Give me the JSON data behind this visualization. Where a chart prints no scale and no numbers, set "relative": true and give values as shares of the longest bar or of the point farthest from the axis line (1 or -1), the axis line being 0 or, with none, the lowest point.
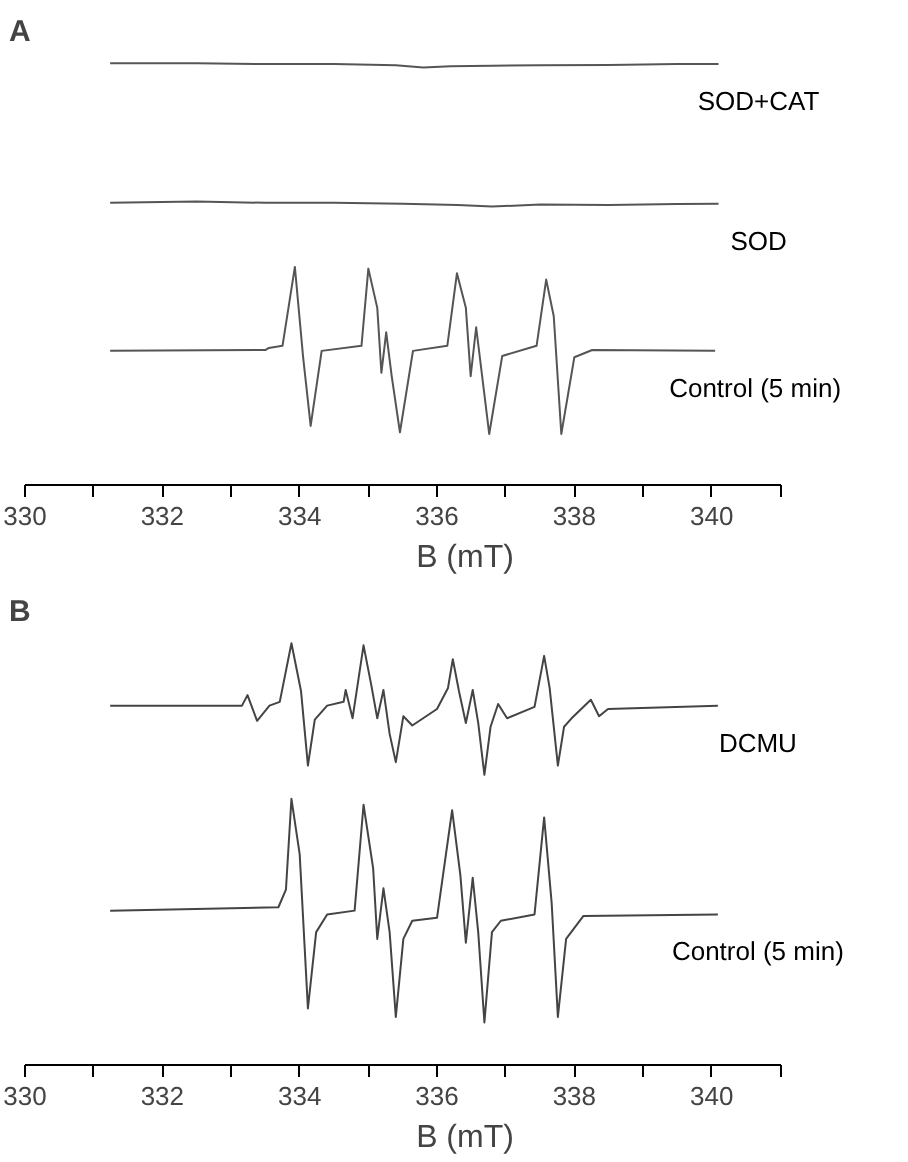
{
  "chart_data": [
    {
      "type": "line",
      "title": "A",
      "xlabel": "B (mT)",
      "relative": true,
      "xlim": [
        330,
        341
      ],
      "xticks": [
        330,
        {
          "value": 331,
          "label": null
        },
        332,
        {
          "value": 333,
          "label": null
        },
        334,
        {
          "value": 335,
          "label": null
        },
        336,
        {
          "value": 337,
          "label": null
        },
        338,
        {
          "value": 339,
          "label": null
        },
        340,
        {
          "value": 341,
          "label": null
        }
      ],
      "grid": false,
      "line_style": "solid",
      "series": [
        {
          "name": "SOD+CAT",
          "color": "#555555",
          "x": [
            331.24,
            332.5,
            333.5,
            334.5,
            335.4,
            335.8,
            336.2,
            336.8,
            337.5,
            338.5,
            339.5,
            340.1
          ],
          "values": [
            1.0,
            1.0,
            0.998,
            0.998,
            0.995,
            0.99,
            0.993,
            0.994,
            0.995,
            0.996,
            0.998,
            0.998
          ]
        },
        {
          "name": "SOD",
          "color": "#555555",
          "x": [
            331.24,
            332.5,
            333.5,
            334.5,
            335.5,
            336.3,
            336.8,
            337.5,
            338.5,
            339.5,
            340.1
          ],
          "values": [
            0.669,
            0.672,
            0.669,
            0.669,
            0.667,
            0.664,
            0.66,
            0.665,
            0.664,
            0.666,
            0.667
          ]
        },
        {
          "name": "Control (5 min)",
          "color": "#555555",
          "x": [
            331.24,
            333.5,
            333.55,
            333.75,
            333.93,
            334.05,
            334.16,
            334.32,
            334.9,
            335.0,
            335.13,
            335.19,
            335.26,
            335.34,
            335.46,
            335.65,
            336.15,
            336.29,
            336.42,
            336.49,
            336.57,
            336.76,
            336.95,
            337.45,
            337.59,
            337.7,
            337.81,
            338.0,
            338.26,
            340.05
          ],
          "values": [
            0.318,
            0.32,
            0.325,
            0.33,
            0.517,
            0.303,
            0.14,
            0.318,
            0.33,
            0.513,
            0.42,
            0.266,
            0.362,
            0.258,
            0.125,
            0.318,
            0.33,
            0.502,
            0.42,
            0.258,
            0.374,
            0.121,
            0.306,
            0.33,
            0.487,
            0.4,
            0.121,
            0.303,
            0.32,
            0.318
          ]
        }
      ]
    },
    {
      "type": "line",
      "title": "B",
      "xlabel": "B (mT)",
      "relative": true,
      "xlim": [
        330,
        341
      ],
      "xticks": [
        330,
        {
          "value": 331,
          "label": null
        },
        332,
        {
          "value": 333,
          "label": null
        },
        334,
        {
          "value": 335,
          "label": null
        },
        336,
        {
          "value": 337,
          "label": null
        },
        338,
        {
          "value": 339,
          "label": null
        },
        340,
        {
          "value": 341,
          "label": null
        }
      ],
      "grid": false,
      "line_style": "solid",
      "series": [
        {
          "name": "DCMU",
          "color": "#444444",
          "x": [
            331.24,
            333.16,
            333.24,
            333.38,
            333.56,
            333.71,
            333.88,
            334.02,
            334.12,
            334.22,
            334.4,
            334.64,
            334.67,
            334.77,
            334.93,
            335.04,
            335.13,
            335.22,
            335.31,
            335.4,
            335.51,
            335.64,
            336.0,
            336.16,
            336.23,
            336.32,
            336.42,
            336.52,
            336.6,
            336.69,
            336.78,
            336.89,
            337.02,
            337.42,
            337.56,
            337.64,
            337.76,
            337.85,
            337.96,
            338.24,
            338.36,
            338.49,
            340.09
          ],
          "values": [
            0.852,
            0.852,
            0.877,
            0.816,
            0.852,
            0.861,
            1.0,
            0.886,
            0.71,
            0.819,
            0.852,
            0.861,
            0.889,
            0.822,
            0.995,
            0.903,
            0.822,
            0.889,
            0.785,
            0.718,
            0.827,
            0.805,
            0.844,
            0.894,
            0.962,
            0.886,
            0.811,
            0.889,
            0.811,
            0.688,
            0.802,
            0.856,
            0.822,
            0.849,
            0.97,
            0.894,
            0.71,
            0.802,
            0.822,
            0.866,
            0.827,
            0.844,
            0.852
          ]
        },
        {
          "name": "Control (5 min)",
          "color": "#444444",
          "x": [
            331.24,
            333.69,
            333.8,
            333.88,
            334.0,
            334.12,
            334.24,
            334.4,
            334.8,
            334.93,
            335.07,
            335.13,
            335.22,
            335.31,
            335.4,
            335.51,
            335.64,
            336.0,
            336.22,
            336.34,
            336.42,
            336.52,
            336.6,
            336.69,
            336.8,
            336.93,
            337.42,
            337.56,
            337.67,
            337.76,
            337.88,
            338.13,
            340.09
          ],
          "values": [
            0.366,
            0.374,
            0.416,
            0.631,
            0.5,
            0.134,
            0.315,
            0.357,
            0.366,
            0.617,
            0.466,
            0.299,
            0.419,
            0.315,
            0.114,
            0.299,
            0.342,
            0.349,
            0.604,
            0.45,
            0.29,
            0.444,
            0.315,
            0.101,
            0.315,
            0.342,
            0.357,
            0.587,
            0.383,
            0.114,
            0.299,
            0.353,
            0.357
          ]
        }
      ]
    }
  ]
}
